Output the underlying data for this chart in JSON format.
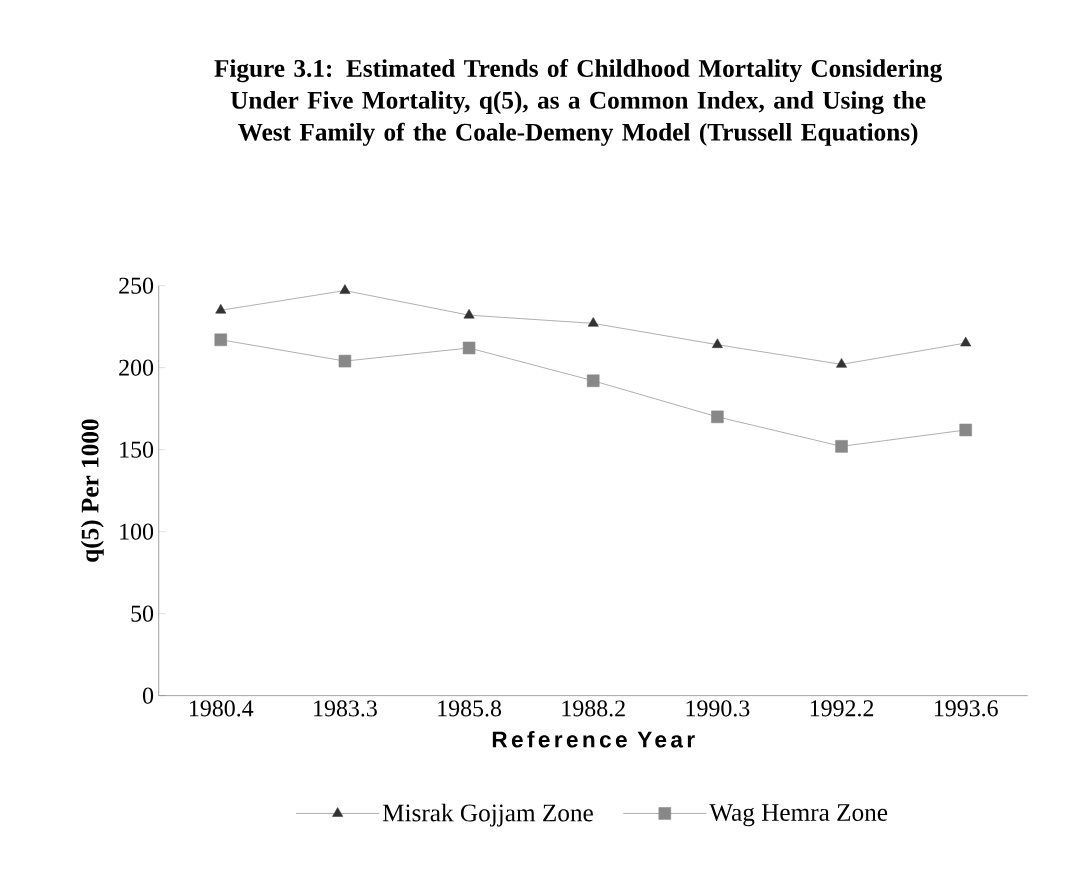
{
  "chart_data": {
    "type": "line",
    "title": "Figure 3.1: Estimated Trends of Childhood Mortality Considering Under Five Mortality, q(5), as a Common Index, and Using the West Family of the Coale-Demeny Model (Trussell Equations)",
    "xlabel": "Reference Year",
    "ylabel": "q(5) Per 1000",
    "categories": [
      "1980.4",
      "1983.3",
      "1985.8",
      "1988.2",
      "1990.3",
      "1992.2",
      "1993.6"
    ],
    "series": [
      {
        "name": "Misrak Gojjam Zone",
        "color": "#333333",
        "marker": "triangle",
        "values": [
          235,
          247,
          232,
          227,
          214,
          202,
          215
        ]
      },
      {
        "name": "Wag Hemra Zone",
        "color": "#888888",
        "marker": "square",
        "values": [
          217,
          204,
          212,
          192,
          170,
          152,
          162
        ]
      }
    ],
    "ylim": [
      0,
      250
    ],
    "yticks": [
      0,
      50,
      100,
      150,
      200,
      250
    ],
    "legend": "bottom",
    "grid": false,
    "line_style": "solid"
  }
}
